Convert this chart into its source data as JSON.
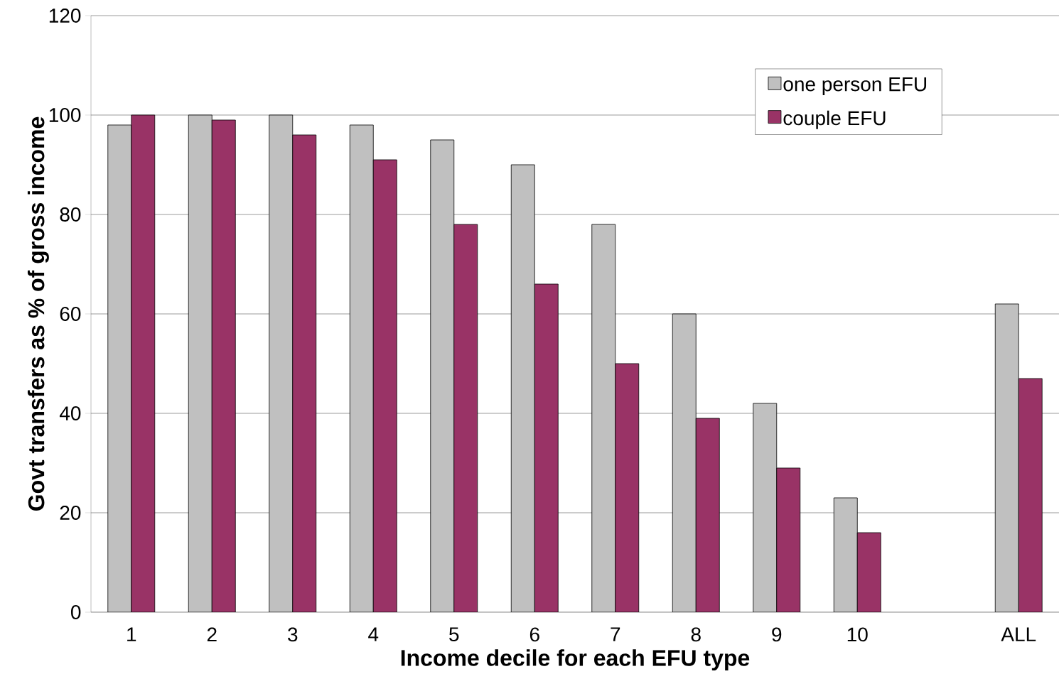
{
  "chart_data": {
    "type": "bar",
    "xlabel": "Income decile for each EFU type",
    "ylabel": "Govt transfers as % of gross income",
    "categories": [
      "1",
      "2",
      "3",
      "4",
      "5",
      "6",
      "7",
      "8",
      "9",
      "10",
      null,
      "ALL"
    ],
    "series": [
      {
        "name": "one person EFU",
        "color": "#c0c0c0",
        "values": [
          98,
          100,
          100,
          98,
          95,
          90,
          78,
          60,
          42,
          23,
          null,
          62
        ]
      },
      {
        "name": "couple EFU",
        "color": "#993366",
        "values": [
          100,
          99,
          96,
          91,
          78,
          66,
          50,
          39,
          29,
          16,
          null,
          47
        ]
      }
    ],
    "ylim": [
      0,
      120
    ],
    "yticks": [
      0,
      20,
      40,
      60,
      80,
      100,
      120
    ],
    "grid": "y",
    "legend": "top right"
  }
}
